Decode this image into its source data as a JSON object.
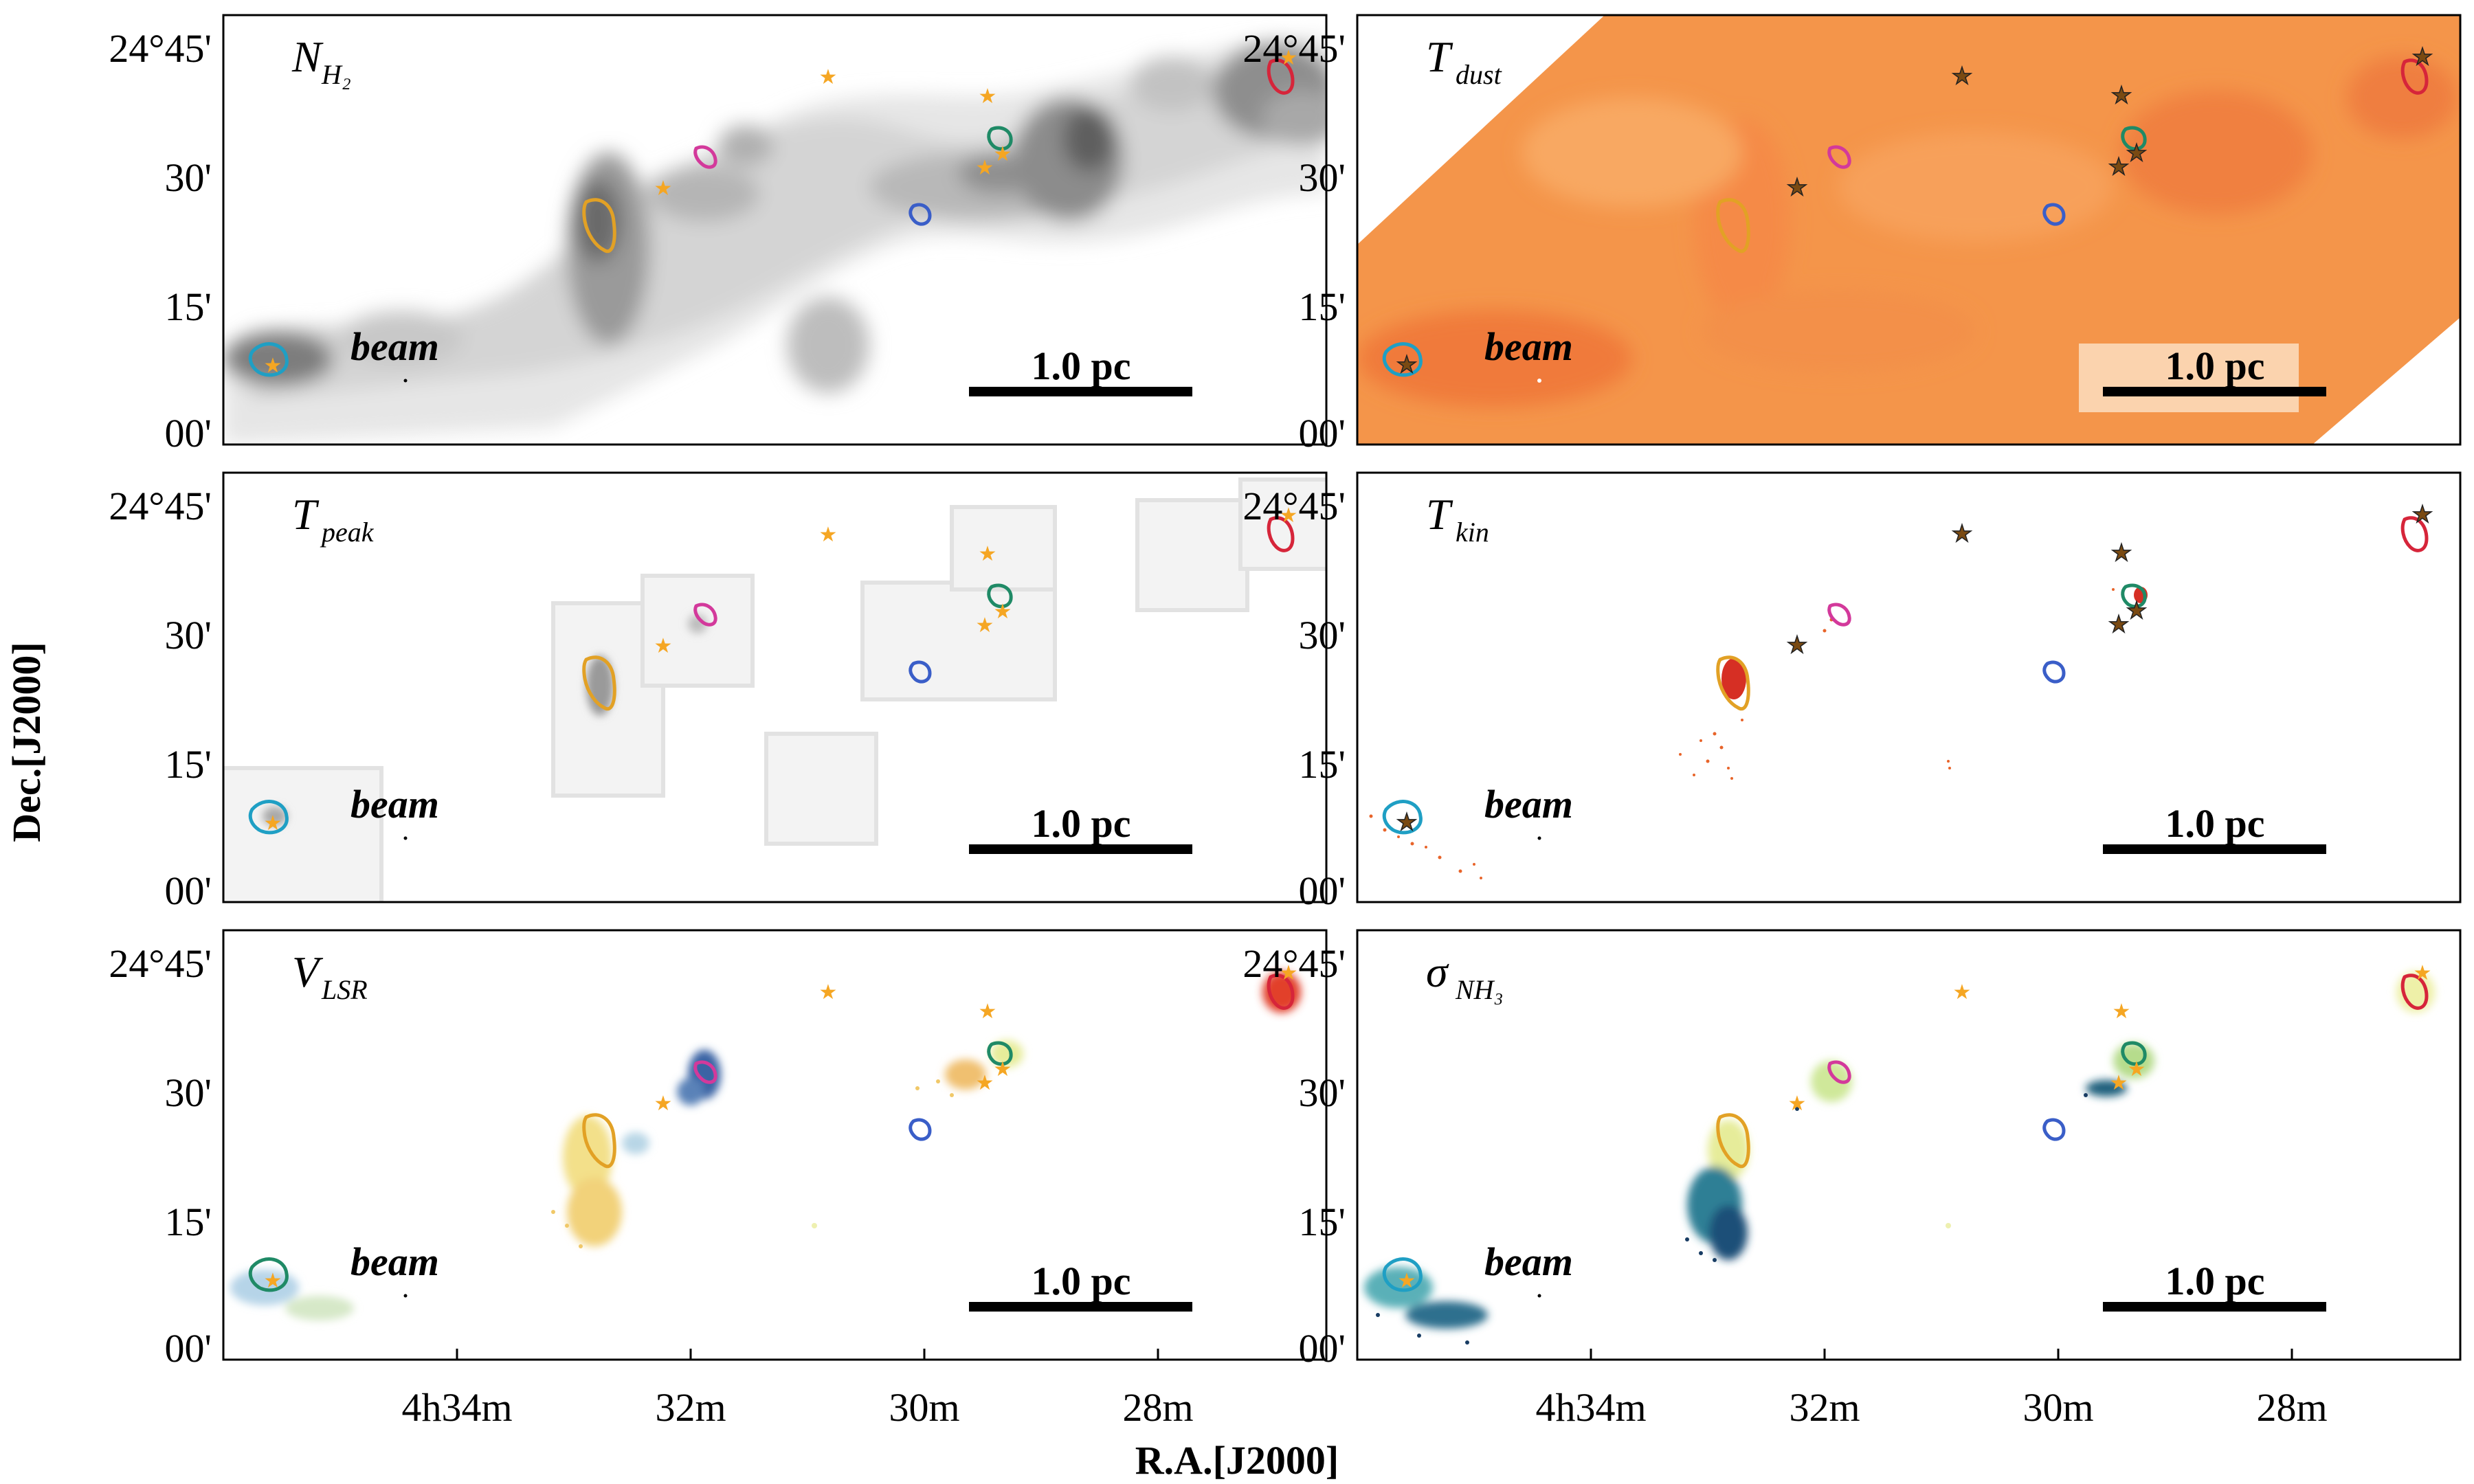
{
  "figure": {
    "xlabel": "R.A.[J2000]",
    "ylabel": "Dec.[J2000]",
    "x_ticks": [
      "4h34m",
      "32m",
      "30m",
      "28m"
    ],
    "y_ticks": [
      "24°45'",
      "30'",
      "15'",
      "00'"
    ],
    "beam_label": "beam",
    "scale_label": "1.0 pc",
    "colors": {
      "star": "#f5a623",
      "star_outline": "#222222",
      "dust_bg": "#f4954a",
      "contour_cyan": "#1f9fc4",
      "contour_orange": "#e2a125",
      "contour_magenta": "#d3399b",
      "contour_green": "#1f8a66",
      "contour_blue": "#3a5ec8",
      "contour_red": "#d6253a"
    }
  },
  "panels": [
    {
      "id": "nh2",
      "label_main": "N",
      "label_sub": "H₂"
    },
    {
      "id": "tdust",
      "label_main": "T",
      "label_sub": "dust"
    },
    {
      "id": "tpeak",
      "label_main": "T",
      "label_sub": "peak"
    },
    {
      "id": "tkin",
      "label_main": "T",
      "label_sub": "kin"
    },
    {
      "id": "vlsr",
      "label_main": "V",
      "label_sub": "LSR"
    },
    {
      "id": "sigma",
      "label_main": "σ",
      "label_sub": "NH₃"
    }
  ]
}
